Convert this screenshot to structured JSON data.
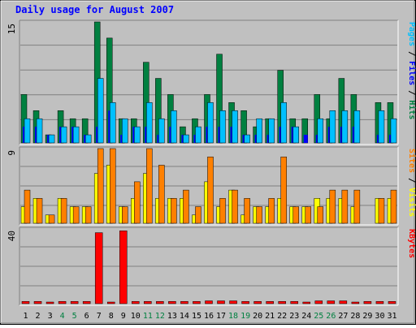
{
  "chart_data": {
    "type": "bar",
    "title": "Daily usage for August 2007",
    "categories": [
      "1",
      "2",
      "3",
      "4",
      "5",
      "6",
      "7",
      "8",
      "9",
      "10",
      "11",
      "12",
      "13",
      "14",
      "15",
      "16",
      "17",
      "18",
      "19",
      "20",
      "21",
      "22",
      "23",
      "24",
      "25",
      "26",
      "27",
      "28",
      "29",
      "30",
      "31"
    ],
    "weekend_days": [
      "4",
      "5",
      "11",
      "12",
      "18",
      "19",
      "25",
      "26"
    ],
    "panels": [
      {
        "id": "hits-files-pages",
        "ymax": 15,
        "ymax_label": "15",
        "axis_label_parts": [
          {
            "text": "Pages",
            "color": "#00c0ff"
          },
          {
            "text": " / ",
            "color": "#000000"
          },
          {
            "text": "Files",
            "color": "#0000ff"
          },
          {
            "text": " / ",
            "color": "#000000"
          },
          {
            "text": "Hits",
            "color": "#008040"
          }
        ],
        "series": [
          {
            "name": "Hits",
            "color": "#008040",
            "values": [
              6,
              4,
              1,
              4,
              3,
              3,
              15,
              13,
              3,
              3,
              10,
              8,
              6,
              2,
              3,
              6,
              11,
              5,
              4,
              2,
              3,
              9,
              3,
              3,
              6,
              3,
              8,
              6,
              0,
              5,
              5
            ]
          },
          {
            "name": "Files",
            "color": "#0000ff",
            "values": [
              2,
              2,
              1,
              2,
              2,
              1,
              2,
              4,
              1,
              2,
              2,
              1,
              2,
              1,
              1,
              2,
              2,
              2,
              1,
              1,
              1,
              2,
              2,
              1,
              1,
              2,
              2,
              2,
              0,
              1,
              1
            ]
          },
          {
            "name": "Pages",
            "color": "#00c0ff",
            "values": [
              3,
              3,
              1,
              2,
              2,
              1,
              8,
              5,
              3,
              2,
              5,
              3,
              4,
              1,
              2,
              5,
              4,
              4,
              1,
              3,
              3,
              5,
              2,
              0,
              3,
              4,
              4,
              4,
              0,
              4,
              3
            ]
          }
        ]
      },
      {
        "id": "visits-sites",
        "ymax": 9,
        "ymax_label": "9",
        "axis_label_parts": [
          {
            "text": "Sites",
            "color": "#ff8000"
          },
          {
            "text": " / ",
            "color": "#000000"
          },
          {
            "text": "Visits",
            "color": "#ffff00"
          }
        ],
        "series": [
          {
            "name": "Visits",
            "color": "#ffff00",
            "values": [
              2,
              3,
              1,
              3,
              2,
              2,
              6,
              7,
              2,
              3,
              6,
              3,
              3,
              3,
              1,
              5,
              2,
              4,
              1,
              2,
              2,
              3,
              2,
              2,
              3,
              3,
              3,
              2,
              0,
              3,
              3
            ]
          },
          {
            "name": "Sites",
            "color": "#ff8000",
            "values": [
              4,
              3,
              1,
              3,
              2,
              2,
              9,
              9,
              2,
              5,
              9,
              7,
              3,
              4,
              2,
              8,
              3,
              4,
              3,
              2,
              3,
              8,
              2,
              2,
              2,
              4,
              4,
              4,
              0,
              3,
              4
            ]
          }
        ]
      },
      {
        "id": "kbytes",
        "ymax": 40,
        "ymax_label": "40",
        "axis_label_parts": [
          {
            "text": "KBytes",
            "color": "#ff0000"
          }
        ],
        "series": [
          {
            "name": "KBytes",
            "color": "#ff0000",
            "values": [
              1.2,
              1.2,
              0.6,
              1.2,
              1.2,
              1.2,
              38,
              0.6,
              39,
              1.2,
              1.2,
              1.2,
              1.2,
              1.2,
              1.2,
              1.5,
              1.5,
              1.5,
              1.2,
              1.2,
              1.2,
              1.2,
              1.2,
              0.6,
              1.5,
              1.5,
              1.5,
              0.6,
              1.2,
              1.2,
              1.2
            ]
          }
        ]
      }
    ],
    "colors": {
      "background": "#c0c0c0",
      "title": "#0000ff",
      "weekend_label": "#008040",
      "weekday_label": "#000000",
      "grid": "#808080"
    }
  }
}
